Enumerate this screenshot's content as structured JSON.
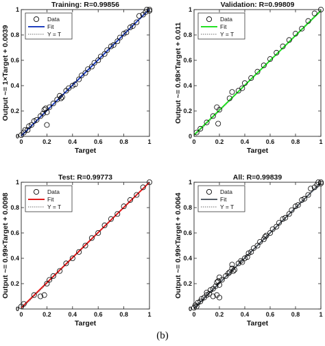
{
  "caption": "(b)",
  "colors": {
    "training_fit": "#1f3fbf",
    "validation_fit": "#22e022",
    "test_fit": "#e01b1b",
    "all_fit": "#555d66",
    "marker": "#000000",
    "identity": "#666666"
  },
  "chart_data": [
    {
      "type": "scatter",
      "title": "Training: R=0.99856",
      "xlabel": "Target",
      "ylabel": "Output ~= 1×Target + 0.0039",
      "xlim": [
        0,
        1
      ],
      "ylim": [
        0,
        1
      ],
      "xticks": [
        "0",
        "0.2",
        "0.4",
        "0.6",
        "0.8",
        "1"
      ],
      "yticks": [
        "0",
        "0.2",
        "0.4",
        "0.6",
        "0.8",
        "1"
      ],
      "legend": {
        "placement": "top-left",
        "entries": [
          "Data",
          "Fit",
          "Y = T"
        ]
      },
      "fit": {
        "slope": 1.0,
        "intercept": 0.0039,
        "color": "#1f3fbf"
      },
      "points": [
        [
          0.0,
          0.01
        ],
        [
          0.02,
          0.03
        ],
        [
          0.03,
          0.05
        ],
        [
          0.05,
          0.05
        ],
        [
          0.06,
          0.08
        ],
        [
          0.08,
          0.09
        ],
        [
          0.1,
          0.12
        ],
        [
          0.12,
          0.13
        ],
        [
          0.15,
          0.16
        ],
        [
          0.17,
          0.18
        ],
        [
          0.18,
          0.21
        ],
        [
          0.19,
          0.22
        ],
        [
          0.2,
          0.19
        ],
        [
          0.2,
          0.09
        ],
        [
          0.22,
          0.23
        ],
        [
          0.25,
          0.26
        ],
        [
          0.28,
          0.29
        ],
        [
          0.3,
          0.32
        ],
        [
          0.31,
          0.3
        ],
        [
          0.32,
          0.31
        ],
        [
          0.35,
          0.36
        ],
        [
          0.37,
          0.38
        ],
        [
          0.4,
          0.4
        ],
        [
          0.42,
          0.41
        ],
        [
          0.45,
          0.45
        ],
        [
          0.47,
          0.48
        ],
        [
          0.5,
          0.5
        ],
        [
          0.52,
          0.53
        ],
        [
          0.55,
          0.55
        ],
        [
          0.57,
          0.58
        ],
        [
          0.6,
          0.6
        ],
        [
          0.62,
          0.63
        ],
        [
          0.65,
          0.65
        ],
        [
          0.67,
          0.68
        ],
        [
          0.7,
          0.71
        ],
        [
          0.72,
          0.72
        ],
        [
          0.75,
          0.75
        ],
        [
          0.77,
          0.78
        ],
        [
          0.8,
          0.81
        ],
        [
          0.82,
          0.82
        ],
        [
          0.85,
          0.86
        ],
        [
          0.87,
          0.87
        ],
        [
          0.9,
          0.9
        ],
        [
          0.92,
          0.95
        ],
        [
          0.95,
          0.96
        ],
        [
          0.97,
          0.98
        ],
        [
          0.98,
          1.0
        ],
        [
          1.0,
          1.0
        ],
        [
          1.0,
          0.99
        ]
      ]
    },
    {
      "type": "scatter",
      "title": "Validation: R=0.99809",
      "xlabel": "Target",
      "ylabel": "Output ~= 0.98×Target + 0.011",
      "xlim": [
        0,
        1
      ],
      "ylim": [
        0,
        1
      ],
      "xticks": [
        "0",
        "0.2",
        "0.4",
        "0.6",
        "0.8",
        "1"
      ],
      "yticks": [
        "0",
        "0.2",
        "0.4",
        "0.6",
        "0.8",
        "1"
      ],
      "legend": {
        "placement": "top-left",
        "entries": [
          "Data",
          "Fit",
          "Y = T"
        ]
      },
      "fit": {
        "slope": 0.98,
        "intercept": 0.011,
        "color": "#22e022"
      },
      "points": [
        [
          0.02,
          0.03
        ],
        [
          0.05,
          0.06
        ],
        [
          0.1,
          0.11
        ],
        [
          0.15,
          0.16
        ],
        [
          0.18,
          0.23
        ],
        [
          0.19,
          0.1
        ],
        [
          0.2,
          0.21
        ],
        [
          0.28,
          0.3
        ],
        [
          0.3,
          0.35
        ],
        [
          0.35,
          0.36
        ],
        [
          0.38,
          0.38
        ],
        [
          0.4,
          0.42
        ],
        [
          0.45,
          0.46
        ],
        [
          0.5,
          0.51
        ],
        [
          0.55,
          0.56
        ],
        [
          0.6,
          0.61
        ],
        [
          0.65,
          0.66
        ],
        [
          0.7,
          0.71
        ],
        [
          0.75,
          0.76
        ],
        [
          0.8,
          0.81
        ],
        [
          0.85,
          0.85
        ],
        [
          0.9,
          0.91
        ],
        [
          0.95,
          0.97
        ],
        [
          1.0,
          1.0
        ]
      ]
    },
    {
      "type": "scatter",
      "title": "Test: R=0.99773",
      "xlabel": "Target",
      "ylabel": "Output ~= 0.99×Target + 0.0098",
      "xlim": [
        0,
        1
      ],
      "ylim": [
        0,
        1
      ],
      "xticks": [
        "0",
        "0.2",
        "0.4",
        "0.6",
        "0.8",
        "1"
      ],
      "yticks": [
        "0",
        "0.2",
        "0.4",
        "0.6",
        "0.8",
        "1"
      ],
      "legend": {
        "placement": "top-left",
        "entries": [
          "Data",
          "Fit",
          "Y = T"
        ]
      },
      "fit": {
        "slope": 0.99,
        "intercept": 0.0098,
        "color": "#e01b1b"
      },
      "points": [
        [
          0.0,
          0.02
        ],
        [
          0.02,
          0.04
        ],
        [
          0.1,
          0.11
        ],
        [
          0.15,
          0.1
        ],
        [
          0.18,
          0.11
        ],
        [
          0.2,
          0.2
        ],
        [
          0.22,
          0.23
        ],
        [
          0.25,
          0.26
        ],
        [
          0.3,
          0.3
        ],
        [
          0.35,
          0.36
        ],
        [
          0.4,
          0.4
        ],
        [
          0.45,
          0.45
        ],
        [
          0.5,
          0.5
        ],
        [
          0.55,
          0.56
        ],
        [
          0.6,
          0.6
        ],
        [
          0.65,
          0.66
        ],
        [
          0.7,
          0.71
        ],
        [
          0.75,
          0.75
        ],
        [
          0.8,
          0.81
        ],
        [
          0.85,
          0.86
        ],
        [
          0.9,
          0.9
        ],
        [
          0.95,
          0.96
        ],
        [
          1.0,
          1.0
        ]
      ]
    },
    {
      "type": "scatter",
      "title": "All: R=0.99839",
      "xlabel": "Target",
      "ylabel": "Output ~= 0.99×Target + 0.0064",
      "xlim": [
        0,
        1
      ],
      "ylim": [
        0,
        1
      ],
      "xticks": [
        "0",
        "0.2",
        "0.4",
        "0.6",
        "0.8",
        "1"
      ],
      "yticks": [
        "0",
        "0.2",
        "0.4",
        "0.6",
        "0.8",
        "1"
      ],
      "legend": {
        "placement": "top-left",
        "entries": [
          "Data",
          "Fit",
          "Y = T"
        ]
      },
      "fit": {
        "slope": 0.99,
        "intercept": 0.0064,
        "color": "#555d66"
      },
      "points": [
        [
          0.0,
          0.01
        ],
        [
          0.01,
          0.03
        ],
        [
          0.02,
          0.02
        ],
        [
          0.03,
          0.05
        ],
        [
          0.05,
          0.06
        ],
        [
          0.06,
          0.08
        ],
        [
          0.08,
          0.09
        ],
        [
          0.1,
          0.11
        ],
        [
          0.1,
          0.13
        ],
        [
          0.12,
          0.12
        ],
        [
          0.13,
          0.15
        ],
        [
          0.15,
          0.16
        ],
        [
          0.15,
          0.1
        ],
        [
          0.17,
          0.18
        ],
        [
          0.18,
          0.21
        ],
        [
          0.18,
          0.11
        ],
        [
          0.19,
          0.22
        ],
        [
          0.2,
          0.19
        ],
        [
          0.2,
          0.25
        ],
        [
          0.2,
          0.09
        ],
        [
          0.22,
          0.23
        ],
        [
          0.25,
          0.26
        ],
        [
          0.27,
          0.28
        ],
        [
          0.28,
          0.29
        ],
        [
          0.3,
          0.32
        ],
        [
          0.3,
          0.35
        ],
        [
          0.31,
          0.3
        ],
        [
          0.32,
          0.31
        ],
        [
          0.35,
          0.36
        ],
        [
          0.37,
          0.38
        ],
        [
          0.38,
          0.37
        ],
        [
          0.4,
          0.4
        ],
        [
          0.42,
          0.41
        ],
        [
          0.43,
          0.44
        ],
        [
          0.45,
          0.45
        ],
        [
          0.47,
          0.48
        ],
        [
          0.5,
          0.5
        ],
        [
          0.52,
          0.53
        ],
        [
          0.55,
          0.55
        ],
        [
          0.56,
          0.57
        ],
        [
          0.57,
          0.58
        ],
        [
          0.6,
          0.6
        ],
        [
          0.62,
          0.63
        ],
        [
          0.65,
          0.65
        ],
        [
          0.67,
          0.68
        ],
        [
          0.7,
          0.71
        ],
        [
          0.72,
          0.72
        ],
        [
          0.75,
          0.75
        ],
        [
          0.77,
          0.78
        ],
        [
          0.8,
          0.81
        ],
        [
          0.82,
          0.82
        ],
        [
          0.85,
          0.86
        ],
        [
          0.87,
          0.87
        ],
        [
          0.9,
          0.9
        ],
        [
          0.92,
          0.95
        ],
        [
          0.95,
          0.96
        ],
        [
          0.97,
          0.98
        ],
        [
          0.98,
          1.0
        ],
        [
          1.0,
          1.0
        ],
        [
          1.0,
          0.99
        ]
      ]
    }
  ]
}
